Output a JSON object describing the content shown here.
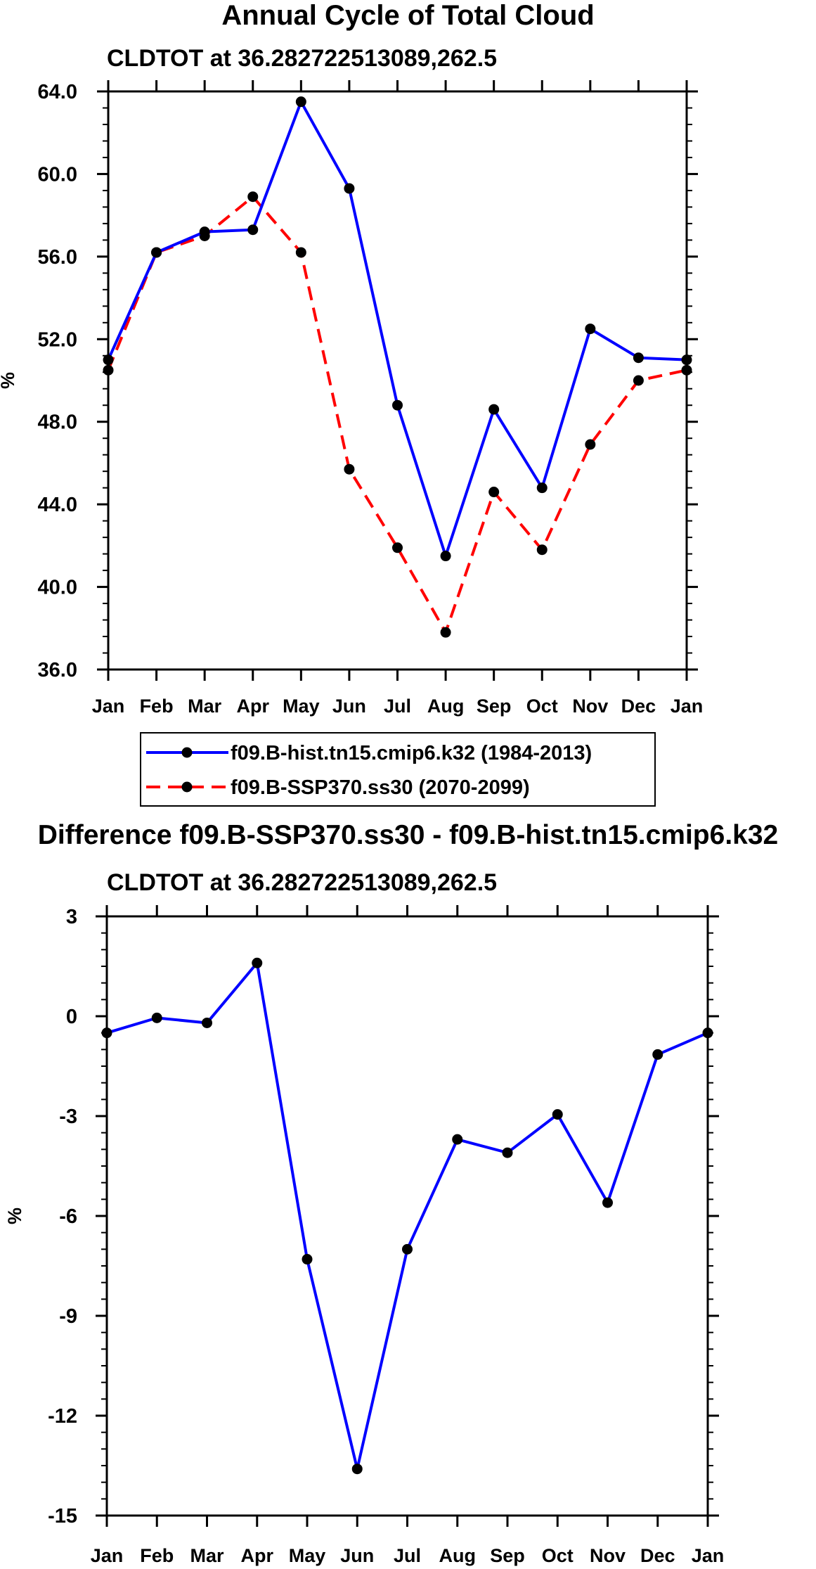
{
  "chart_data": [
    {
      "type": "line",
      "title": "Annual Cycle of Total Cloud",
      "subtitle": "CLDTOT at 36.282722513089,262.5",
      "xlabel": "",
      "ylabel": "%",
      "categories": [
        "Jan",
        "Feb",
        "Mar",
        "Apr",
        "May",
        "Jun",
        "Jul",
        "Aug",
        "Sep",
        "Oct",
        "Nov",
        "Dec",
        "Jan"
      ],
      "ylim": [
        36.0,
        64.0
      ],
      "yticks": [
        "36.0",
        "40.0",
        "44.0",
        "48.0",
        "52.0",
        "56.0",
        "60.0",
        "64.0"
      ],
      "grid": false,
      "legend": "bottom",
      "series": [
        {
          "name": "f09.B-hist.tn15.cmip6.k32 (1984-2013)",
          "color": "#0000ff",
          "style": "solid",
          "values": [
            51.0,
            56.2,
            57.2,
            57.3,
            63.5,
            59.3,
            48.8,
            41.5,
            48.6,
            44.8,
            52.5,
            51.1,
            51.0
          ]
        },
        {
          "name": "f09.B-SSP370.ss30 (2070-2099)",
          "color": "#ff0000",
          "style": "dashed",
          "values": [
            50.5,
            56.2,
            57.0,
            58.9,
            56.2,
            45.7,
            41.9,
            37.8,
            44.6,
            41.8,
            46.9,
            50.0,
            50.5
          ]
        }
      ]
    },
    {
      "type": "line",
      "title": "Difference f09.B-SSP370.ss30 - f09.B-hist.tn15.cmip6.k32",
      "subtitle": "CLDTOT at 36.282722513089,262.5",
      "xlabel": "",
      "ylabel": "%",
      "categories": [
        "Jan",
        "Feb",
        "Mar",
        "Apr",
        "May",
        "Jun",
        "Jul",
        "Aug",
        "Sep",
        "Oct",
        "Nov",
        "Dec",
        "Jan"
      ],
      "ylim": [
        -15,
        3
      ],
      "yticks": [
        "-15",
        "-12",
        "-9",
        "-6",
        "-3",
        "0",
        "3"
      ],
      "grid": false,
      "series": [
        {
          "name": "Difference",
          "color": "#0000ff",
          "style": "solid",
          "values": [
            -0.5,
            -0.05,
            -0.2,
            1.6,
            -7.3,
            -13.6,
            -7.0,
            -3.7,
            -4.1,
            -2.95,
            -5.6,
            -1.15,
            -0.5
          ]
        }
      ]
    }
  ]
}
